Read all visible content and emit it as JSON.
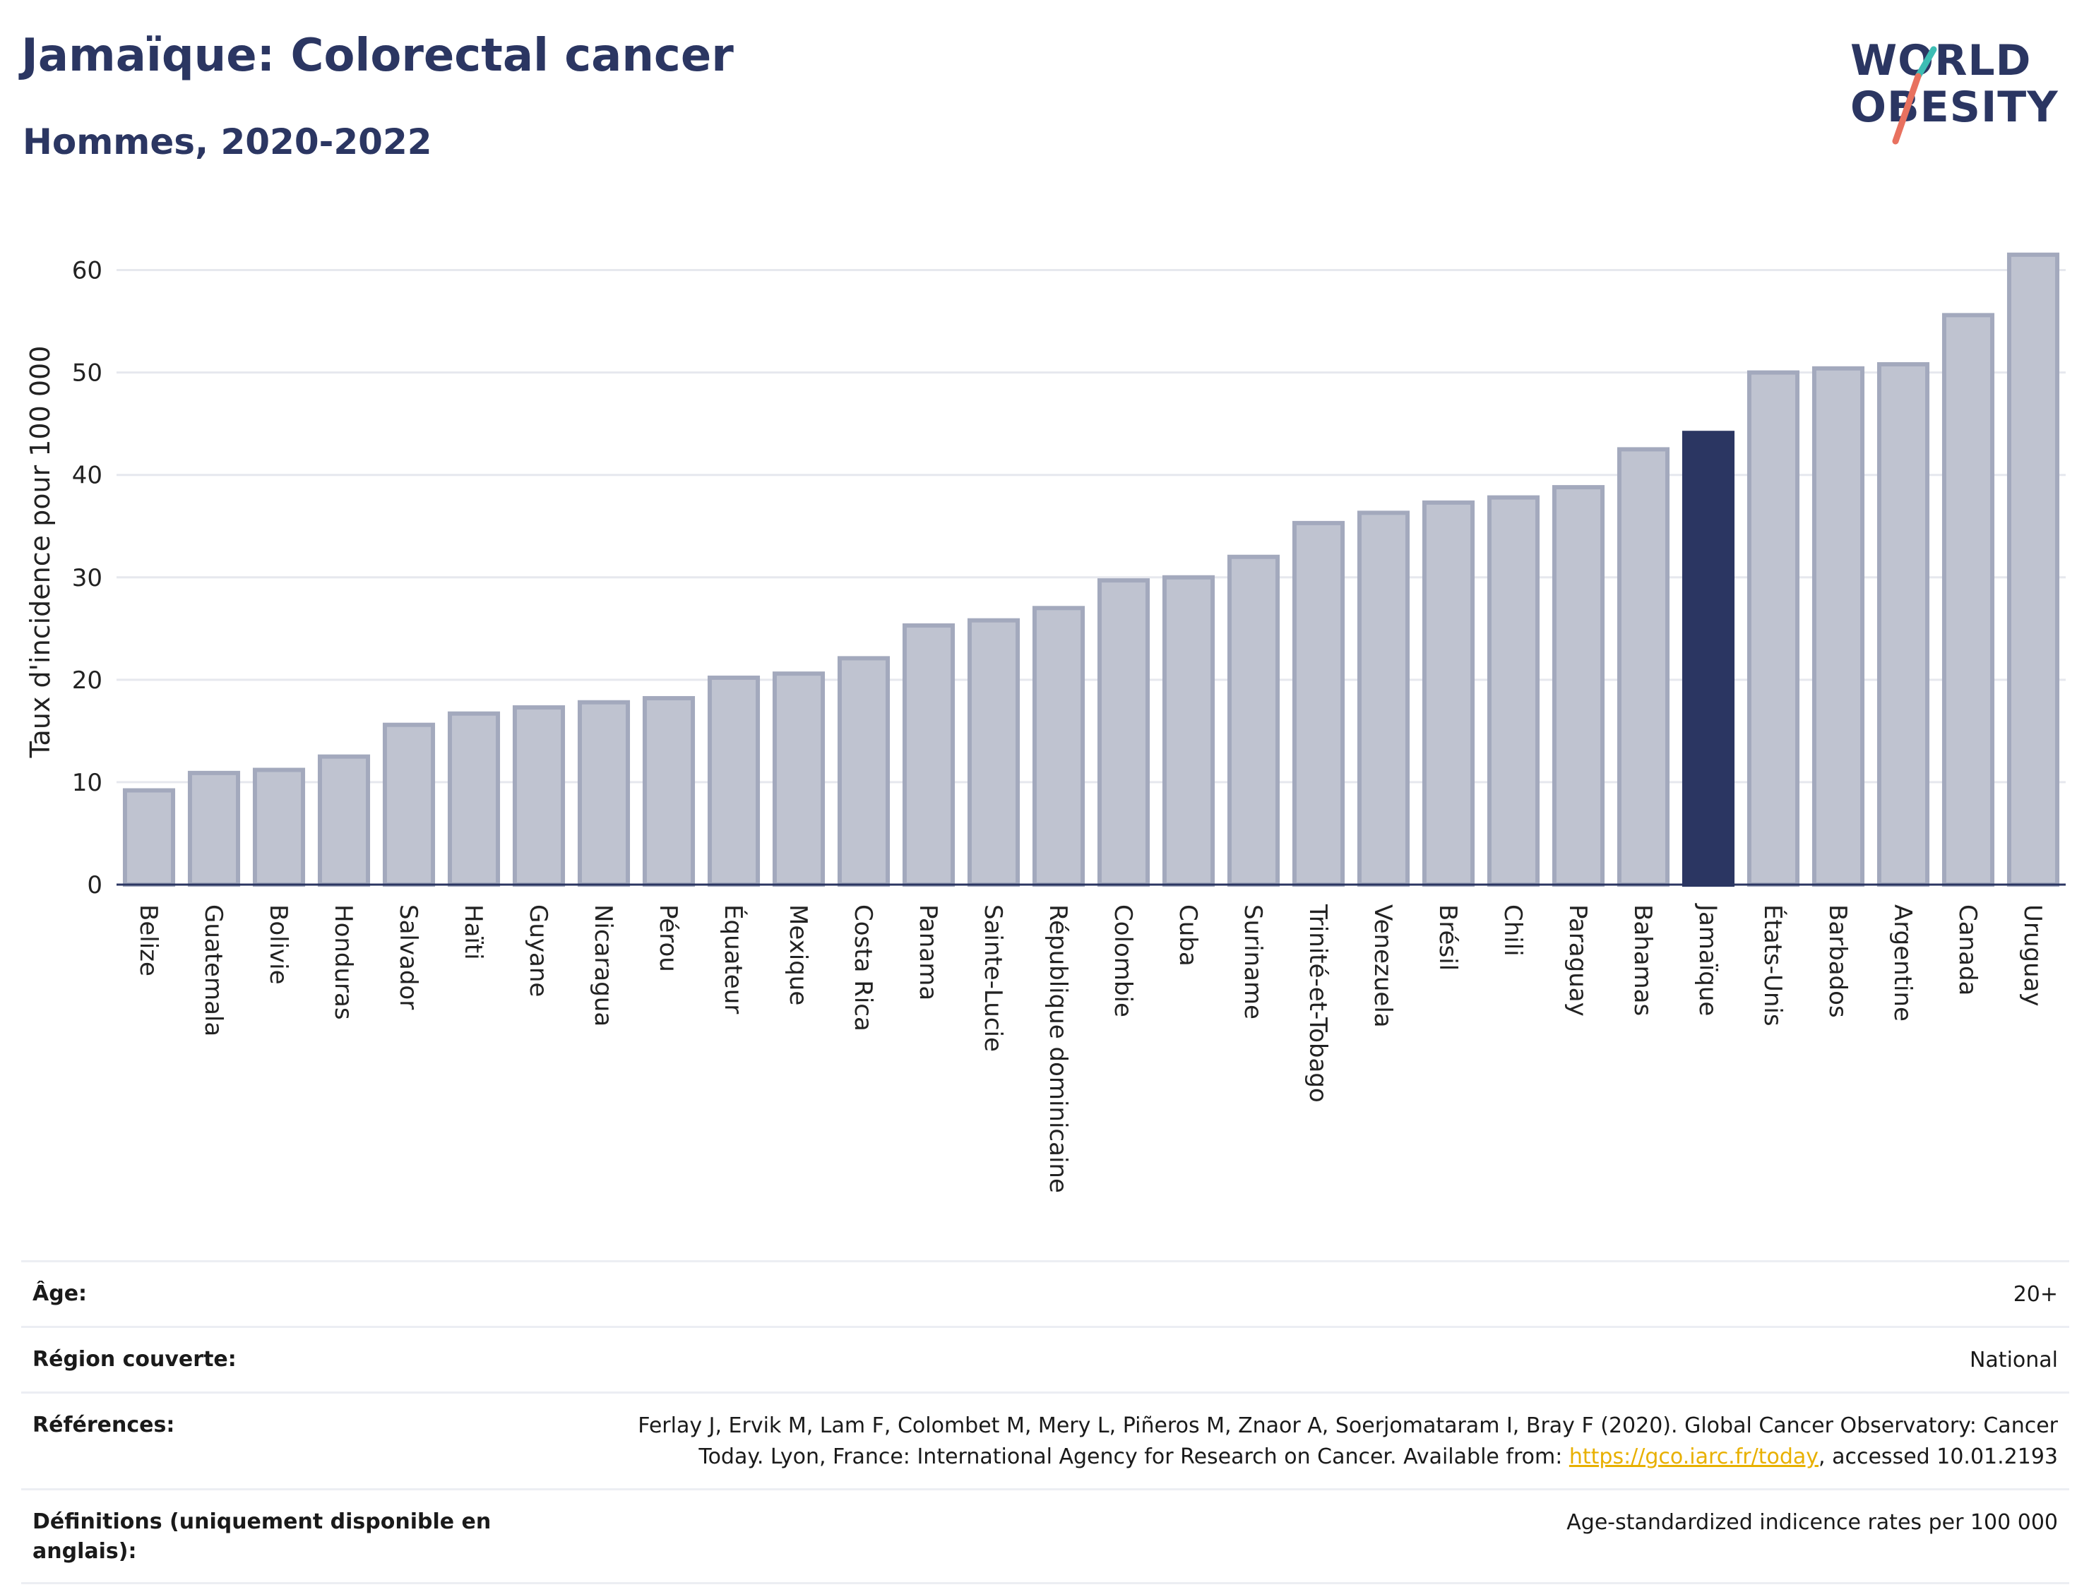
{
  "header": {
    "title": "Jamaïque: Colorectal cancer",
    "subtitle": "Hommes, 2020-2022"
  },
  "logo": {
    "line1": "WORLD",
    "line2": "OBESITY",
    "accent_teal": "#3dbdb4",
    "accent_coral": "#e8715f"
  },
  "colors": {
    "bar_default": "#bfc3d0",
    "bar_border": "#a3a9bd",
    "bar_highlight": "#2b3662",
    "grid": "#e6e8ee",
    "axis": "#2b3662"
  },
  "chart_data": {
    "type": "bar",
    "title": "Jamaïque: Colorectal cancer",
    "subtitle": "Hommes, 2020-2022",
    "ylabel": "Taux d'incidence pour 100 000",
    "ylim": [
      0,
      65
    ],
    "yticks": [
      0,
      10,
      20,
      30,
      40,
      50,
      60
    ],
    "grid": true,
    "highlight": "Jamaïque",
    "categories": [
      "Belize",
      "Guatemala",
      "Bolivie",
      "Honduras",
      "Salvador",
      "Haïti",
      "Guyane",
      "Nicaragua",
      "Pérou",
      "Équateur",
      "Mexique",
      "Costa Rica",
      "Panama",
      "Sainte-Lucie",
      "République dominicaine",
      "Colombie",
      "Cuba",
      "Suriname",
      "Trinité-et-Tobago",
      "Venezuela",
      "Brésil",
      "Chili",
      "Paraguay",
      "Bahamas",
      "Jamaïque",
      "États-Unis",
      "Barbados",
      "Argentine",
      "Canada",
      "Uruguay"
    ],
    "values": [
      9.2,
      10.9,
      11.2,
      12.5,
      15.6,
      16.7,
      17.3,
      17.8,
      18.2,
      20.2,
      20.6,
      22.1,
      25.3,
      25.8,
      27.0,
      29.7,
      30.0,
      32.0,
      35.3,
      36.3,
      37.3,
      37.8,
      38.8,
      42.5,
      44.1,
      50.0,
      50.4,
      50.8,
      55.6,
      61.5
    ]
  },
  "meta": {
    "age_label": "Âge:",
    "age_value": "20+",
    "region_label": "Région couverte:",
    "region_value": "National",
    "references_label": "Références:",
    "references_text_line1": "Ferlay J, Ervik M, Lam F, Colombet M, Mery L, Piñeros M, Znaor A, Soerjomataram I, Bray F (2020). Global Cancer Observatory: Cancer",
    "references_text_line2_pre": "Today. Lyon, France: International Agency for Research on Cancer. Available from: ",
    "references_link": "https://gco.iarc.fr/today",
    "references_text_line2_post": ", accessed 10.01.2193",
    "definitions_label": "Définitions (uniquement disponible en anglais):",
    "definitions_value": "Age-standardized indicence rates per 100 000"
  }
}
